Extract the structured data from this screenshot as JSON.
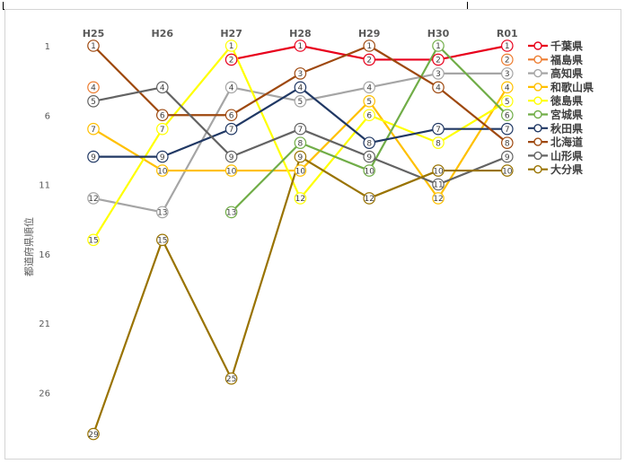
{
  "chart_data": {
    "type": "line",
    "title": "",
    "xlabel": "",
    "ylabel": "都道府県順位",
    "categories": [
      "H25",
      "H26",
      "H27",
      "H28",
      "H29",
      "H30",
      "R01"
    ],
    "yticks": [
      1,
      6,
      11,
      16,
      21,
      26
    ],
    "ylim": [
      1,
      29
    ],
    "y_inverted": true,
    "grid": false,
    "legend_position": "right",
    "series": [
      {
        "name": "千葉県",
        "color": "#e8001c",
        "values": [
          null,
          null,
          2,
          1,
          2,
          2,
          1
        ]
      },
      {
        "name": "福島県",
        "color": "#ed7d31",
        "values": [
          4,
          null,
          null,
          null,
          null,
          null,
          2
        ]
      },
      {
        "name": "高知県",
        "color": "#a5a5a5",
        "values": [
          12,
          13,
          4,
          5,
          4,
          3,
          3
        ]
      },
      {
        "name": "和歌山県",
        "color": "#ffc000",
        "values": [
          7,
          10,
          10,
          10,
          5,
          12,
          4
        ]
      },
      {
        "name": "徳島県",
        "color": "#ffff00",
        "values": [
          15,
          7,
          1,
          12,
          6,
          8,
          5
        ]
      },
      {
        "name": "宮城県",
        "color": "#70ad47",
        "values": [
          null,
          null,
          13,
          8,
          10,
          1,
          6
        ]
      },
      {
        "name": "秋田県",
        "color": "#203864",
        "values": [
          9,
          9,
          7,
          4,
          8,
          7,
          7
        ]
      },
      {
        "name": "北海道",
        "color": "#9e480e",
        "values": [
          1,
          6,
          6,
          3,
          1,
          4,
          8
        ]
      },
      {
        "name": "山形県",
        "color": "#636363",
        "values": [
          5,
          4,
          9,
          7,
          9,
          11,
          9
        ]
      },
      {
        "name": "大分県",
        "color": "#997300",
        "values": [
          29,
          15,
          25,
          9,
          12,
          10,
          10
        ]
      }
    ]
  }
}
